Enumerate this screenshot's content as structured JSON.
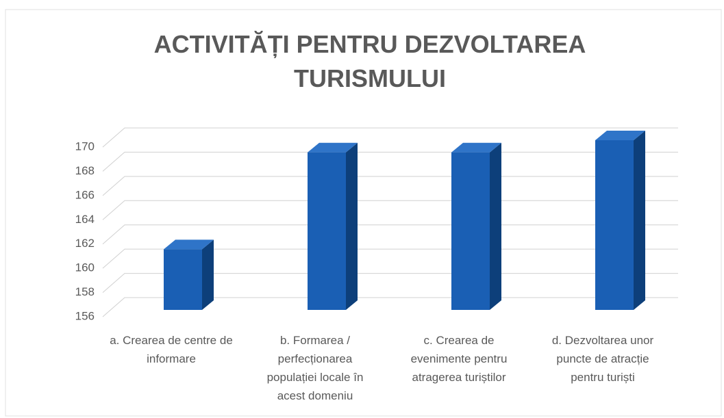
{
  "chart_data": {
    "type": "bar3d",
    "title": "ACTIVITĂȚI PENTRU DEZVOLTAREA TURISMULUI",
    "categories": [
      "a. Crearea de centre de informare",
      "b. Formarea / perfecționarea populației locale în acest domeniu",
      "c. Crearea de evenimente pentru atragerea turiștilor",
      "d. Dezvoltarea unor puncte de atracție pentru turiști"
    ],
    "values": [
      161,
      169,
      169,
      170
    ],
    "color": "#1a5fb4",
    "ylim": [
      156,
      170
    ],
    "yticks": [
      156,
      158,
      160,
      162,
      164,
      166,
      168,
      170
    ],
    "grid": true
  }
}
